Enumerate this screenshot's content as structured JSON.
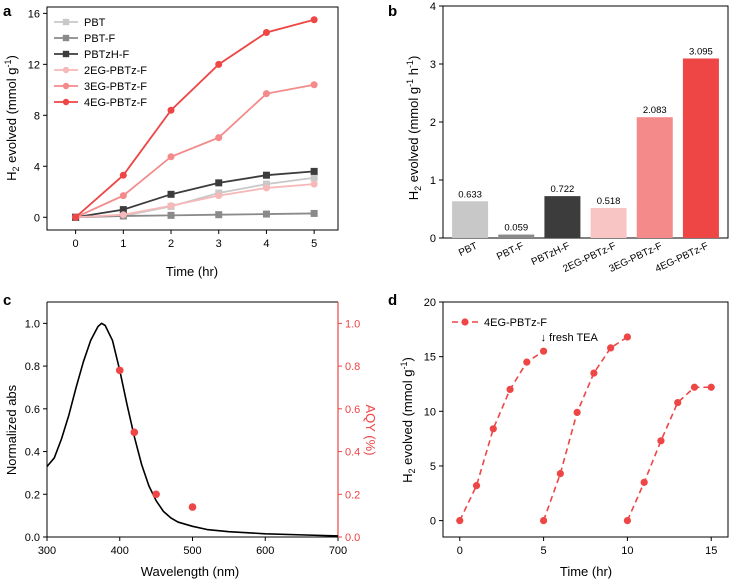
{
  "chart_data": [
    {
      "panel": "a",
      "type": "line",
      "xlabel": "Time (hr)",
      "ylabel_main": "H",
      "ylabel_sub": "2",
      "ylabel_rest": " evolved (mmol g",
      "ylabel_sup": "-1",
      "ylabel_end": ")",
      "xlim": [
        -0.6,
        5.5
      ],
      "ylim": [
        -1,
        16.5
      ],
      "xticks": [
        0,
        1,
        2,
        3,
        4,
        5
      ],
      "yticks": [
        0,
        4,
        8,
        12,
        16
      ],
      "legend_position": "top-left",
      "series": [
        {
          "name": "PBT",
          "color": "#c8c8c8",
          "marker": "square",
          "x": [
            0,
            1,
            2,
            3,
            4,
            5
          ],
          "values": [
            0,
            0.1,
            0.85,
            1.9,
            2.6,
            3.1
          ]
        },
        {
          "name": "PBT-F",
          "color": "#8a8a8a",
          "marker": "square",
          "x": [
            0,
            1,
            2,
            3,
            4,
            5
          ],
          "values": [
            0,
            0.1,
            0.15,
            0.2,
            0.25,
            0.3
          ]
        },
        {
          "name": "PBTzH-F",
          "color": "#3c3c3c",
          "marker": "square",
          "x": [
            0,
            1,
            2,
            3,
            4,
            5
          ],
          "values": [
            0,
            0.6,
            1.8,
            2.7,
            3.3,
            3.6
          ]
        },
        {
          "name": "2EG-PBTz-F",
          "color": "#f6b8b8",
          "marker": "circle",
          "x": [
            0,
            1,
            2,
            3,
            4,
            5
          ],
          "values": [
            0,
            0.2,
            0.9,
            1.7,
            2.3,
            2.6
          ]
        },
        {
          "name": "3EG-PBTz-F",
          "color": "#f48a8a",
          "marker": "circle",
          "x": [
            0,
            1,
            2,
            3,
            4,
            5
          ],
          "values": [
            0,
            1.7,
            4.75,
            6.25,
            9.7,
            10.4
          ]
        },
        {
          "name": "4EG-PBTz-F",
          "color": "#ee4545",
          "marker": "circle",
          "x": [
            0,
            1,
            2,
            3,
            4,
            5
          ],
          "values": [
            0,
            3.3,
            8.4,
            12.0,
            14.5,
            15.5
          ]
        }
      ]
    },
    {
      "panel": "b",
      "type": "bar",
      "ylabel_main": "H",
      "ylabel_sub": "2",
      "ylabel_rest": " evolved (mmol g",
      "ylabel_sup1": "-1",
      "ylabel_mid": " h",
      "ylabel_sup2": "-1",
      "ylabel_end": ")",
      "ylim": [
        0,
        4
      ],
      "yticks": [
        0,
        1,
        2,
        3,
        4
      ],
      "categories": [
        "PBT",
        "PBT-F",
        "PBTzH-F",
        "2EG-PBTz-F",
        "3EG-PBTz-F",
        "4EG-PBTz-F"
      ],
      "values": [
        0.633,
        0.059,
        0.722,
        0.518,
        2.083,
        3.095
      ],
      "labels": [
        "0.633",
        "0.059",
        "0.722",
        "0.518",
        "2.083",
        "3.095"
      ],
      "colors": [
        "#c8c8c8",
        "#8a8a8a",
        "#3c3c3c",
        "#f9c4c4",
        "#f48a8a",
        "#ee4545"
      ]
    },
    {
      "panel": "c",
      "type": "line",
      "xlabel": "Wavelength (nm)",
      "ylabel_left": "Normalized abs",
      "ylabel_right": "AQY (%)",
      "xlim": [
        300,
        700
      ],
      "ylim": [
        0,
        1.1
      ],
      "xticks": [
        300,
        400,
        500,
        600,
        700
      ],
      "yticks": [
        0.0,
        0.2,
        0.4,
        0.6,
        0.8,
        1.0
      ],
      "ytick_labels": [
        "0.0",
        "0.2",
        "0.4",
        "0.6",
        "0.8",
        "1.0"
      ],
      "right_axis_color": "#ee4545",
      "absorbance": {
        "x": [
          300,
          310,
          320,
          330,
          340,
          350,
          360,
          370,
          375,
          380,
          390,
          400,
          410,
          420,
          430,
          440,
          450,
          460,
          470,
          480,
          500,
          520,
          550,
          600,
          650,
          700
        ],
        "values": [
          0.33,
          0.37,
          0.46,
          0.57,
          0.7,
          0.82,
          0.92,
          0.985,
          1.0,
          0.99,
          0.92,
          0.78,
          0.62,
          0.47,
          0.34,
          0.24,
          0.17,
          0.12,
          0.09,
          0.07,
          0.05,
          0.035,
          0.025,
          0.015,
          0.01,
          0.005
        ]
      },
      "aqy": {
        "x": [
          400,
          420,
          450,
          500
        ],
        "values": [
          0.78,
          0.49,
          0.2,
          0.14
        ]
      }
    },
    {
      "panel": "d",
      "type": "line",
      "xlabel": "Time (hr)",
      "ylabel_main": "H",
      "ylabel_sub": "2",
      "ylabel_rest": " evolved (mmol g",
      "ylabel_sup": "-1",
      "ylabel_end": ")",
      "xlim": [
        -1,
        16
      ],
      "ylim": [
        -1.5,
        20
      ],
      "xticks": [
        0,
        5,
        10,
        15
      ],
      "yticks": [
        0,
        5,
        10,
        15,
        20
      ],
      "legend_position": "top-left",
      "annotation": "↓ fresh TEA",
      "series": [
        {
          "name": "4EG-PBTz-F",
          "color": "#ee4545",
          "cycles": [
            {
              "x": [
                0,
                1,
                2,
                3,
                4,
                5
              ],
              "values": [
                0,
                3.2,
                8.4,
                12.0,
                14.5,
                15.5
              ]
            },
            {
              "x": [
                5,
                6,
                7,
                8,
                9,
                10
              ],
              "values": [
                0,
                4.3,
                9.9,
                13.5,
                15.8,
                16.8
              ]
            },
            {
              "x": [
                10,
                11,
                12,
                13,
                14,
                15
              ],
              "values": [
                0,
                3.5,
                7.3,
                10.8,
                12.2,
                12.2
              ]
            }
          ]
        }
      ]
    }
  ]
}
